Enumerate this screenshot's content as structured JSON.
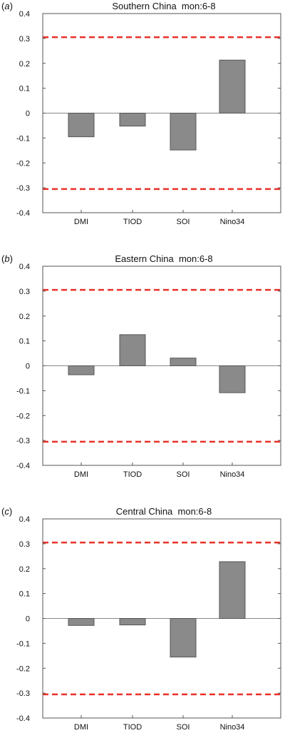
{
  "colors": {
    "bar_fill": "#8a8a8a",
    "bar_stroke": "#555555",
    "threshold_line": "#e8312a",
    "axis": "#555555",
    "zero_line": "#888888"
  },
  "panels": [
    {
      "label_letter": "a",
      "paren_open": "(",
      "paren_close": ")",
      "title": "Southern China  mon:6-8"
    },
    {
      "label_letter": "b",
      "paren_open": "(",
      "paren_close": ")",
      "title": "Eastern China  mon:6-8"
    },
    {
      "label_letter": "c",
      "paren_open": "(",
      "paren_close": ")",
      "title": "Central China  mon:6-8"
    }
  ],
  "chart_data": [
    {
      "type": "bar",
      "title": "Southern China  mon:6-8",
      "categories": [
        "DMI",
        "TIOD",
        "SOI",
        "Nino34"
      ],
      "values": [
        -0.095,
        -0.052,
        -0.148,
        0.213
      ],
      "ylim": [
        -0.4,
        0.4
      ],
      "yticks": [
        "0.4",
        "0.3",
        "0.2",
        "0.1",
        "0",
        "-0.1",
        "-0.2",
        "-0.3",
        "-0.4"
      ],
      "threshold_lines": [
        0.305,
        -0.305
      ],
      "threshold_style": "red dashed",
      "xlabel": "",
      "ylabel": "",
      "grid": false
    },
    {
      "type": "bar",
      "title": "Eastern China  mon:6-8",
      "categories": [
        "DMI",
        "TIOD",
        "SOI",
        "Nino34"
      ],
      "values": [
        -0.036,
        0.125,
        0.031,
        -0.108
      ],
      "ylim": [
        -0.4,
        0.4
      ],
      "yticks": [
        "0.4",
        "0.3",
        "0.2",
        "0.1",
        "0",
        "-0.1",
        "-0.2",
        "-0.3",
        "-0.4"
      ],
      "threshold_lines": [
        0.305,
        -0.305
      ],
      "threshold_style": "red dashed",
      "xlabel": "",
      "ylabel": "",
      "grid": false
    },
    {
      "type": "bar",
      "title": "Central China  mon:6-8",
      "categories": [
        "DMI",
        "TIOD",
        "SOI",
        "Nino34"
      ],
      "values": [
        -0.028,
        -0.026,
        -0.155,
        0.228
      ],
      "ylim": [
        -0.4,
        0.4
      ],
      "yticks": [
        "0.4",
        "0.3",
        "0.2",
        "0.1",
        "0",
        "-0.1",
        "-0.2",
        "-0.3",
        "-0.4"
      ],
      "threshold_lines": [
        0.305,
        -0.305
      ],
      "threshold_style": "red dashed",
      "xlabel": "",
      "ylabel": "",
      "grid": false
    }
  ]
}
